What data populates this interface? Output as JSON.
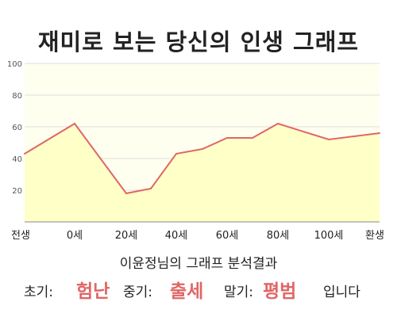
{
  "title": "재미로 보는 당신의 인생 그래프",
  "subtitle": "이윤정님의 그래프 분석결과",
  "summary": {
    "early_label": "초기:",
    "early_value": "험난",
    "mid_label": "중기:",
    "mid_value": "출세",
    "late_label": "말기:",
    "late_value": "평범",
    "ending": "입니다"
  },
  "colors": {
    "line": "#e06666",
    "fill": "#ffffc8",
    "plot_background": "#fffff0",
    "grid": "#dddddd",
    "highlight_text": "#e06666"
  },
  "chart_data": {
    "type": "area",
    "x_labels": [
      "전생",
      "0세",
      "20세",
      "40세",
      "60세",
      "80세",
      "100세",
      "환생"
    ],
    "points": [
      {
        "age": "전생",
        "value": 43
      },
      {
        "age": "0세",
        "value": 62
      },
      {
        "age": "20세",
        "value": 18
      },
      {
        "age": "30세",
        "value": 21
      },
      {
        "age": "40세",
        "value": 43
      },
      {
        "age": "50세",
        "value": 46
      },
      {
        "age": "60세",
        "value": 53
      },
      {
        "age": "70세",
        "value": 53
      },
      {
        "age": "80세",
        "value": 62
      },
      {
        "age": "100세",
        "value": 52
      },
      {
        "age": "환생",
        "value": 56
      }
    ],
    "ylim": [
      0,
      100
    ],
    "y_ticks": [
      20,
      40,
      60,
      80,
      100
    ],
    "grid": true,
    "legend": "none"
  }
}
